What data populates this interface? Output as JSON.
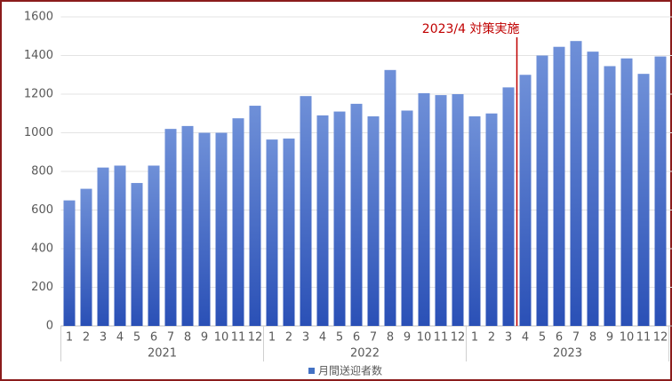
{
  "chart_data": {
    "type": "bar",
    "categories": [
      "1",
      "2",
      "3",
      "4",
      "5",
      "6",
      "7",
      "8",
      "9",
      "10",
      "11",
      "12",
      "1",
      "2",
      "3",
      "4",
      "5",
      "6",
      "7",
      "8",
      "9",
      "10",
      "11",
      "12",
      "1",
      "2",
      "3",
      "4",
      "5",
      "6",
      "7",
      "8",
      "9",
      "10",
      "11",
      "12"
    ],
    "category_groups": [
      "2021",
      "2022",
      "2023"
    ],
    "series": [
      {
        "name": "月間送迎者数",
        "color": "#4472c4",
        "values": [
          650,
          710,
          820,
          830,
          740,
          830,
          1020,
          1035,
          1000,
          1000,
          1075,
          1140,
          965,
          970,
          1190,
          1090,
          1110,
          1150,
          1085,
          1325,
          1115,
          1205,
          1195,
          1200,
          1085,
          1100,
          1235,
          1300,
          1400,
          1445,
          1475,
          1420,
          1345,
          1385,
          1305,
          1395
        ]
      }
    ],
    "ylim": [
      0,
      1600
    ],
    "yticks": [
      0,
      200,
      400,
      600,
      800,
      1000,
      1200,
      1400,
      1600
    ],
    "grid": true,
    "annotation": {
      "text": "2023/4 対策実施",
      "color": "#c00000"
    },
    "legend": "bottom"
  }
}
